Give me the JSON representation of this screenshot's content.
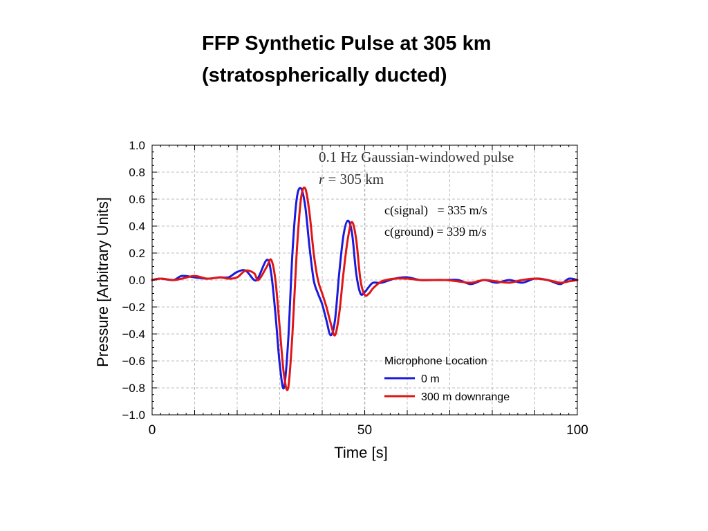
{
  "slide": {
    "title_line1": "FFP Synthetic Pulse at 305 km",
    "title_line2": "(stratospherically ducted)"
  },
  "annotations": {
    "pulse_line1": "0.1 Hz Gaussian-windowed pulse",
    "pulse_r_symbol": "r",
    "pulse_r_value": " = 305 km",
    "c_signal": "c(signal)   = 335 m/s",
    "c_ground": "c(ground) = 339 m/s"
  },
  "chart_data": {
    "type": "line",
    "title": "",
    "xlabel": "Time [s]",
    "ylabel": "Pressure [Arbitrary Units]",
    "xlim": [
      0,
      100
    ],
    "ylim": [
      -1.0,
      1.0
    ],
    "x_ticks": [
      0,
      50,
      100
    ],
    "x_tick_labels": [
      "0",
      "50",
      "100"
    ],
    "y_ticks": [
      -1.0,
      -0.8,
      -0.6,
      -0.4,
      -0.2,
      0.0,
      0.2,
      0.4,
      0.6,
      0.8,
      1.0
    ],
    "y_tick_labels": [
      "−1.0",
      "−0.8",
      "−0.6",
      "−0.4",
      "−0.2",
      "0.0",
      "0.2",
      "0.4",
      "0.6",
      "0.8",
      "1.0"
    ],
    "grid": true,
    "legend_title": "Microphone Location",
    "legend_position": "bottom-right",
    "reference_line_x": 50,
    "series": [
      {
        "name": "0 m",
        "color": "#1a1adc",
        "x": [
          0,
          2,
          5,
          7,
          10,
          13,
          16,
          18,
          20,
          22,
          24,
          25,
          27,
          28,
          29,
          30,
          31,
          32,
          33,
          34,
          35,
          36,
          37,
          38,
          39,
          40,
          41,
          42,
          43,
          44,
          45,
          46,
          47,
          48,
          49,
          50,
          51,
          52,
          54,
          57,
          60,
          63,
          66,
          69,
          72,
          75,
          78,
          81,
          84,
          87,
          90,
          93,
          96,
          98,
          100
        ],
        "y": [
          0.0,
          0.01,
          0.0,
          0.03,
          0.02,
          0.01,
          0.02,
          0.02,
          0.06,
          0.07,
          0.0,
          0.02,
          0.15,
          0.05,
          -0.25,
          -0.62,
          -0.8,
          -0.45,
          0.2,
          0.6,
          0.68,
          0.55,
          0.25,
          0.0,
          -0.1,
          -0.18,
          -0.3,
          -0.41,
          -0.3,
          0.05,
          0.33,
          0.44,
          0.35,
          0.05,
          -0.1,
          -0.09,
          -0.05,
          -0.02,
          -0.02,
          0.01,
          0.02,
          0.0,
          0.0,
          0.0,
          0.0,
          -0.03,
          0.0,
          -0.02,
          0.0,
          -0.02,
          0.01,
          0.0,
          -0.03,
          0.01,
          0.0
        ]
      },
      {
        "name": "300 m downrange",
        "color": "#e01515",
        "x": [
          0,
          2,
          5,
          7,
          10,
          13,
          16,
          18,
          20,
          22,
          24,
          25,
          27,
          28,
          29,
          30,
          31,
          32,
          33,
          34,
          35,
          36,
          37,
          38,
          39,
          40,
          41,
          42,
          43,
          44,
          45,
          46,
          47,
          48,
          49,
          50,
          51,
          52,
          54,
          57,
          60,
          63,
          66,
          69,
          72,
          75,
          78,
          81,
          84,
          87,
          90,
          93,
          96,
          98,
          100
        ],
        "y": [
          0.0,
          0.01,
          0.0,
          0.01,
          0.03,
          0.01,
          0.02,
          0.01,
          0.02,
          0.07,
          0.05,
          0.0,
          0.1,
          0.15,
          0.0,
          -0.35,
          -0.7,
          -0.8,
          -0.4,
          0.2,
          0.6,
          0.68,
          0.5,
          0.2,
          0.0,
          -0.1,
          -0.2,
          -0.32,
          -0.41,
          -0.25,
          0.05,
          0.3,
          0.43,
          0.3,
          0.0,
          -0.11,
          -0.1,
          -0.06,
          -0.01,
          0.01,
          0.01,
          0.0,
          0.0,
          0.0,
          -0.01,
          -0.02,
          0.0,
          -0.01,
          -0.02,
          0.0,
          0.01,
          0.0,
          -0.02,
          -0.01,
          0.0
        ]
      }
    ]
  }
}
